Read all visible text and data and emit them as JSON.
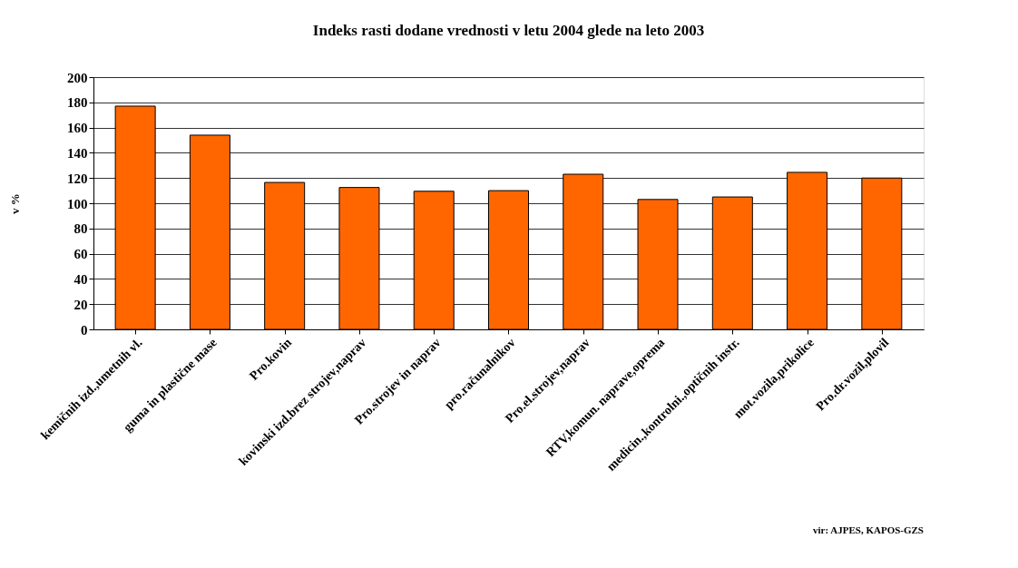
{
  "chart_data": {
    "type": "bar",
    "title": "Indeks rasti dodane vrednosti v letu  2004 glede na leto 2003",
    "ylabel": "v %",
    "categories": [
      "kemičnih izd.,umetnih vl.",
      "guma in plastične mase",
      "Pro.kovin",
      "kovinski izd.brez strojev,naprav",
      "Pro.strojev in naprav",
      "pro.računalnikov",
      "Pro.el.strojev,naprav",
      "RTV,komun. naprave,oprema",
      "medicin.,kontrolni.,optičnih instr.",
      "mot.vozila,prikolice",
      "Pro.dr.vozil,plovil"
    ],
    "values": [
      177,
      154,
      116.5,
      112.5,
      109.5,
      110,
      123,
      103,
      105,
      124.5,
      120
    ],
    "color": "#ff6600",
    "ylim": [
      0,
      200
    ],
    "yticks": [
      0,
      20,
      40,
      60,
      80,
      100,
      120,
      140,
      160,
      180,
      200
    ],
    "grid": "y",
    "annotations": [
      "vir: AJPES, KAPOS-GZS"
    ]
  }
}
